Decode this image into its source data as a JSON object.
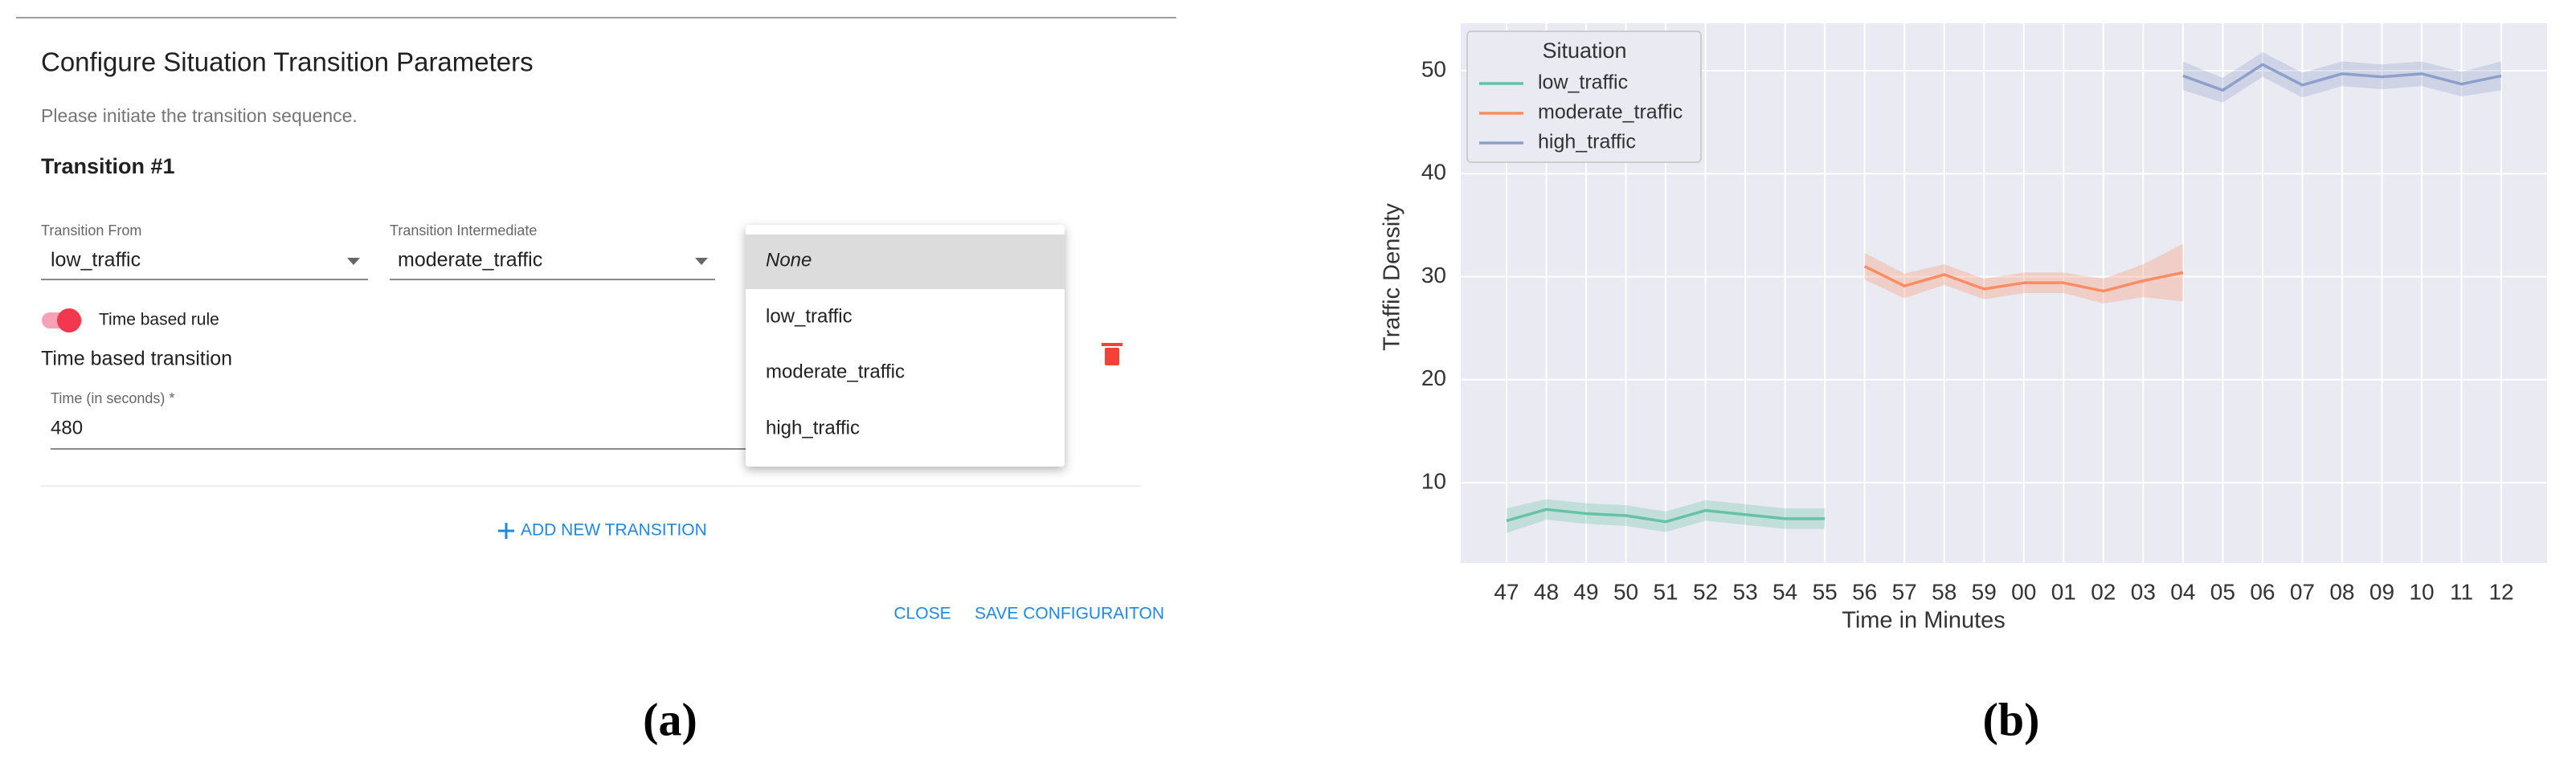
{
  "dialog": {
    "title": "Configure Situation Transition Parameters",
    "subtitle": "Please initiate the transition sequence.",
    "transition_heading": "Transition #1",
    "from_label": "Transition From",
    "from_value": "low_traffic",
    "intermediate_label": "Transition Intermediate",
    "intermediate_value": "moderate_traffic",
    "toggle_label": "Time based rule",
    "section_label": "Time based transition",
    "time_label": "Time (in seconds) *",
    "time_value": "480",
    "add_button": "ADD NEW TRANSITION",
    "close_button": "CLOSE",
    "save_button": "SAVE CONFIGURAITON",
    "menu_items": [
      "None",
      "low_traffic",
      "moderate_traffic",
      "high_traffic"
    ]
  },
  "captions": [
    "(a)",
    "(b)"
  ],
  "chart_data": {
    "type": "line",
    "x_label": "Time in Minutes",
    "y_label": "Traffic Density",
    "legend_title": "Situation",
    "legend_position": "upper left",
    "grid": true,
    "categories": [
      "47",
      "48",
      "49",
      "50",
      "51",
      "52",
      "53",
      "54",
      "55",
      "56",
      "57",
      "58",
      "59",
      "00",
      "01",
      "02",
      "03",
      "04",
      "05",
      "06",
      "07",
      "08",
      "09",
      "10",
      "11",
      "12"
    ],
    "ylim": [
      2.2,
      54.6
    ],
    "yticks": [
      10,
      20,
      30,
      40,
      50
    ],
    "series": [
      {
        "name": "low_traffic",
        "color": "#66c2a5",
        "values": [
          6.3,
          7.4,
          7.0,
          6.8,
          6.2,
          7.3,
          6.9,
          6.5,
          6.5,
          null,
          null,
          null,
          null,
          null,
          null,
          null,
          null,
          null,
          null,
          null,
          null,
          null,
          null,
          null,
          null,
          null
        ],
        "errors": [
          1.2,
          1.0,
          1.0,
          1.0,
          1.0,
          1.0,
          1.0,
          1.0,
          1.0,
          null,
          null,
          null,
          null,
          null,
          null,
          null,
          null,
          null,
          null,
          null,
          null,
          null,
          null,
          null,
          null,
          null
        ]
      },
      {
        "name": "moderate_traffic",
        "color": "#fc8d62",
        "values": [
          null,
          null,
          null,
          null,
          null,
          null,
          null,
          null,
          null,
          31.0,
          29.1,
          30.2,
          28.8,
          29.4,
          29.4,
          28.6,
          29.6,
          30.4,
          null,
          null,
          null,
          null,
          null,
          null,
          null,
          null
        ],
        "errors": [
          null,
          null,
          null,
          null,
          null,
          null,
          null,
          null,
          null,
          1.3,
          1.2,
          1.0,
          1.0,
          1.0,
          1.0,
          1.2,
          1.6,
          2.8,
          null,
          null,
          null,
          null,
          null,
          null,
          null,
          null
        ]
      },
      {
        "name": "high_traffic",
        "color": "#8da0cb",
        "values": [
          null,
          null,
          null,
          null,
          null,
          null,
          null,
          null,
          null,
          null,
          null,
          null,
          null,
          null,
          null,
          null,
          null,
          49.5,
          48.1,
          50.6,
          48.6,
          49.7,
          49.4,
          49.7,
          48.7,
          49.5
        ],
        "errors": [
          null,
          null,
          null,
          null,
          null,
          null,
          null,
          null,
          null,
          null,
          null,
          null,
          null,
          null,
          null,
          null,
          null,
          1.4,
          1.2,
          1.2,
          1.2,
          1.2,
          1.2,
          1.2,
          1.2,
          1.4
        ]
      }
    ]
  }
}
